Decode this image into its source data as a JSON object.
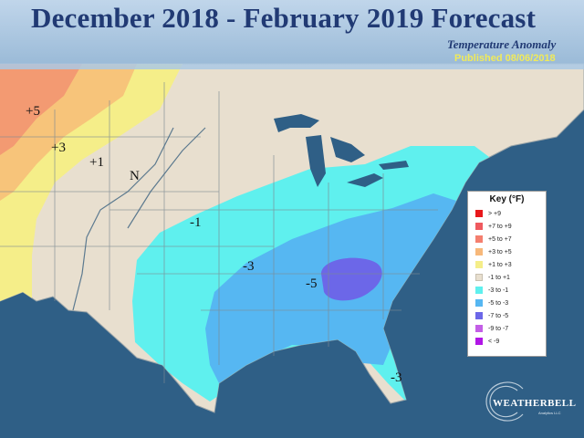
{
  "header": {
    "title": "December 2018 - February 2019 Forecast",
    "subtitle": "Temperature Anomaly",
    "published": "Published 08/06/2018"
  },
  "map": {
    "ocean_color": "#2f5f86",
    "land_color": "#e8dfcf",
    "anomaly_labels": {
      "plus5": "+5",
      "plus3": "+3",
      "plus1": "+1",
      "n": "N",
      "minus1": "-1",
      "minus3_west": "-3",
      "minus5": "-5",
      "minus3_florida": "-3"
    }
  },
  "legend": {
    "title": "Key (°F)",
    "items": [
      {
        "label": "> +9",
        "color": "#e8181c"
      },
      {
        "label": "+7 to +9",
        "color": "#ef5a5f"
      },
      {
        "label": "+5 to +7",
        "color": "#f47f6f"
      },
      {
        "label": "+3 to +5",
        "color": "#f7b87a"
      },
      {
        "label": "+1 to +3",
        "color": "#f5ee89"
      },
      {
        "label": "-1 to +1",
        "color": "#e8dfcf"
      },
      {
        "label": "-3 to -1",
        "color": "#5ff0ee"
      },
      {
        "label": "-5 to -3",
        "color": "#56b7f2"
      },
      {
        "label": "-7 to -5",
        "color": "#6c67e8"
      },
      {
        "label": "-9 to -7",
        "color": "#c35ee6"
      },
      {
        "label": "< -9",
        "color": "#b116e6"
      }
    ]
  },
  "branding": {
    "logo_text": "WEATHERBELL",
    "logo_sub": "Analytics LLC"
  }
}
